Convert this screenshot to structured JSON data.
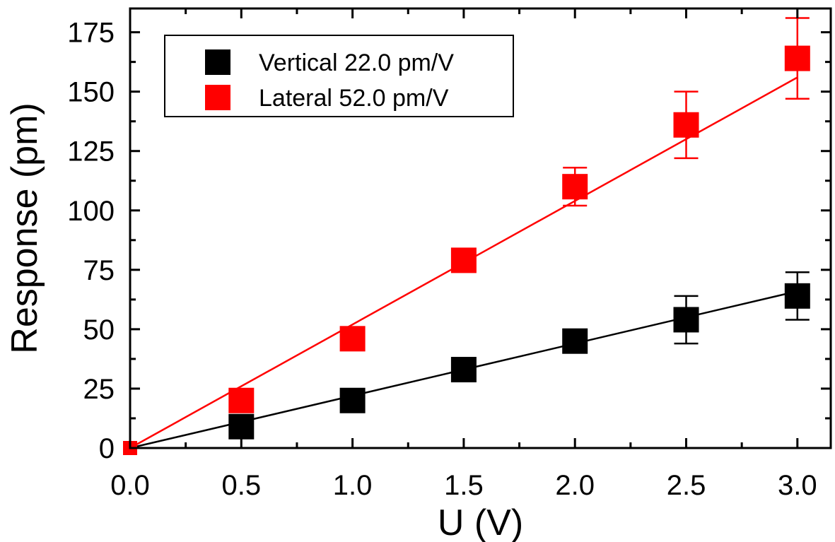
{
  "chart_data": {
    "type": "scatter",
    "xlabel": "U (V)",
    "ylabel": "Response (pm)",
    "xlim": [
      0.0,
      3.15
    ],
    "ylim": [
      0,
      185
    ],
    "x_ticks": [
      "0.0",
      "0.5",
      "1.0",
      "1.5",
      "2.0",
      "2.5",
      "3.0"
    ],
    "y_ticks": [
      "0",
      "25",
      "50",
      "75",
      "100",
      "125",
      "150",
      "175"
    ],
    "grid": false,
    "legend_position": "top-left",
    "series": [
      {
        "name": "Vertical 22.0 pm/V",
        "color": "#000000",
        "marker": "square",
        "x": [
          0.0,
          0.5,
          1.0,
          1.5,
          2.0,
          2.5,
          3.0
        ],
        "y": [
          0,
          9,
          20,
          33,
          45,
          54,
          64
        ],
        "err": [
          0,
          0,
          0,
          0,
          0,
          10,
          10
        ],
        "fit_slope": 22.0
      },
      {
        "name": "Lateral 52.0 pm/V",
        "color": "#ff0000",
        "marker": "square",
        "x": [
          0.0,
          0.5,
          1.0,
          1.5,
          2.0,
          2.5,
          3.0
        ],
        "y": [
          0,
          20,
          46,
          79,
          110,
          136,
          164
        ],
        "err": [
          0,
          0,
          0,
          4,
          8,
          14,
          17
        ],
        "fit_slope": 52.0
      }
    ]
  }
}
